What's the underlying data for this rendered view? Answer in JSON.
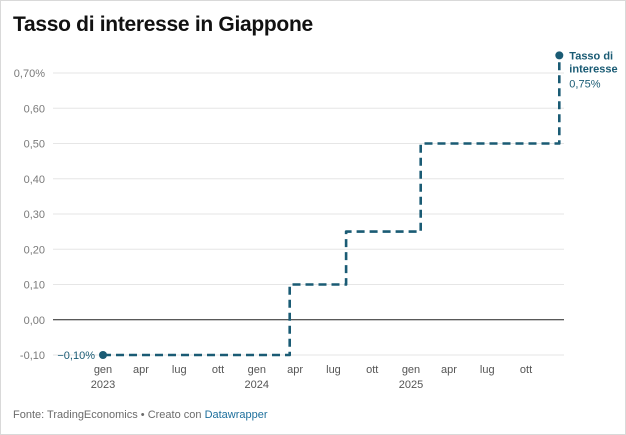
{
  "title": "Tasso di interesse in Giappone",
  "footer": {
    "source": "Fonte: TradingEconomics • Creato con ",
    "tool": "Datawrapper"
  },
  "colors": {
    "line": "#1a5b74",
    "grid": "#e6e6e6",
    "zero": "#222222"
  },
  "chart_data": {
    "type": "line",
    "title": "Tasso di interesse in Giappone",
    "xlabel": "",
    "ylabel": "",
    "ylim": [
      -0.1,
      0.75
    ],
    "y_ticks": [
      {
        "v": 0.7,
        "label": "0,70%"
      },
      {
        "v": 0.6,
        "label": "0,60"
      },
      {
        "v": 0.5,
        "label": "0,50"
      },
      {
        "v": 0.4,
        "label": "0,40"
      },
      {
        "v": 0.3,
        "label": "0,30"
      },
      {
        "v": 0.2,
        "label": "0,20"
      },
      {
        "v": 0.1,
        "label": "0,10"
      },
      {
        "v": 0.0,
        "label": "0,00"
      },
      {
        "v": -0.1,
        "label": "-0,10"
      }
    ],
    "xlim": [
      "2023-01-01",
      "2025-12-31"
    ],
    "x_ticks": [
      {
        "date": "2023-01-01",
        "label": "gen",
        "year": "2023"
      },
      {
        "date": "2023-04-01",
        "label": "apr",
        "year": ""
      },
      {
        "date": "2023-07-01",
        "label": "lug",
        "year": ""
      },
      {
        "date": "2023-10-01",
        "label": "ott",
        "year": ""
      },
      {
        "date": "2024-01-01",
        "label": "gen",
        "year": "2024"
      },
      {
        "date": "2024-04-01",
        "label": "apr",
        "year": ""
      },
      {
        "date": "2024-07-01",
        "label": "lug",
        "year": ""
      },
      {
        "date": "2024-10-01",
        "label": "ott",
        "year": ""
      },
      {
        "date": "2025-01-01",
        "label": "gen",
        "year": "2025"
      },
      {
        "date": "2025-04-01",
        "label": "apr",
        "year": ""
      },
      {
        "date": "2025-07-01",
        "label": "lug",
        "year": ""
      },
      {
        "date": "2025-10-01",
        "label": "ott",
        "year": ""
      }
    ],
    "series": [
      {
        "values": [
          {
            "date": "2023-01-01",
            "v": -0.1
          },
          {
            "date": "2024-03-19",
            "v": -0.1
          },
          {
            "date": "2024-03-19",
            "v": 0.1
          },
          {
            "date": "2024-07-31",
            "v": 0.1
          },
          {
            "date": "2024-07-31",
            "v": 0.25
          },
          {
            "date": "2025-01-24",
            "v": 0.25
          },
          {
            "date": "2025-01-24",
            "v": 0.5
          },
          {
            "date": "2025-12-19",
            "v": 0.5
          },
          {
            "date": "2025-12-19",
            "v": 0.75
          }
        ]
      }
    ],
    "annotations": {
      "start_label": "−0,10%",
      "end_label_line1": "Tasso di",
      "end_label_line2": "interesse",
      "end_value": "0,75%"
    },
    "grid": true
  }
}
